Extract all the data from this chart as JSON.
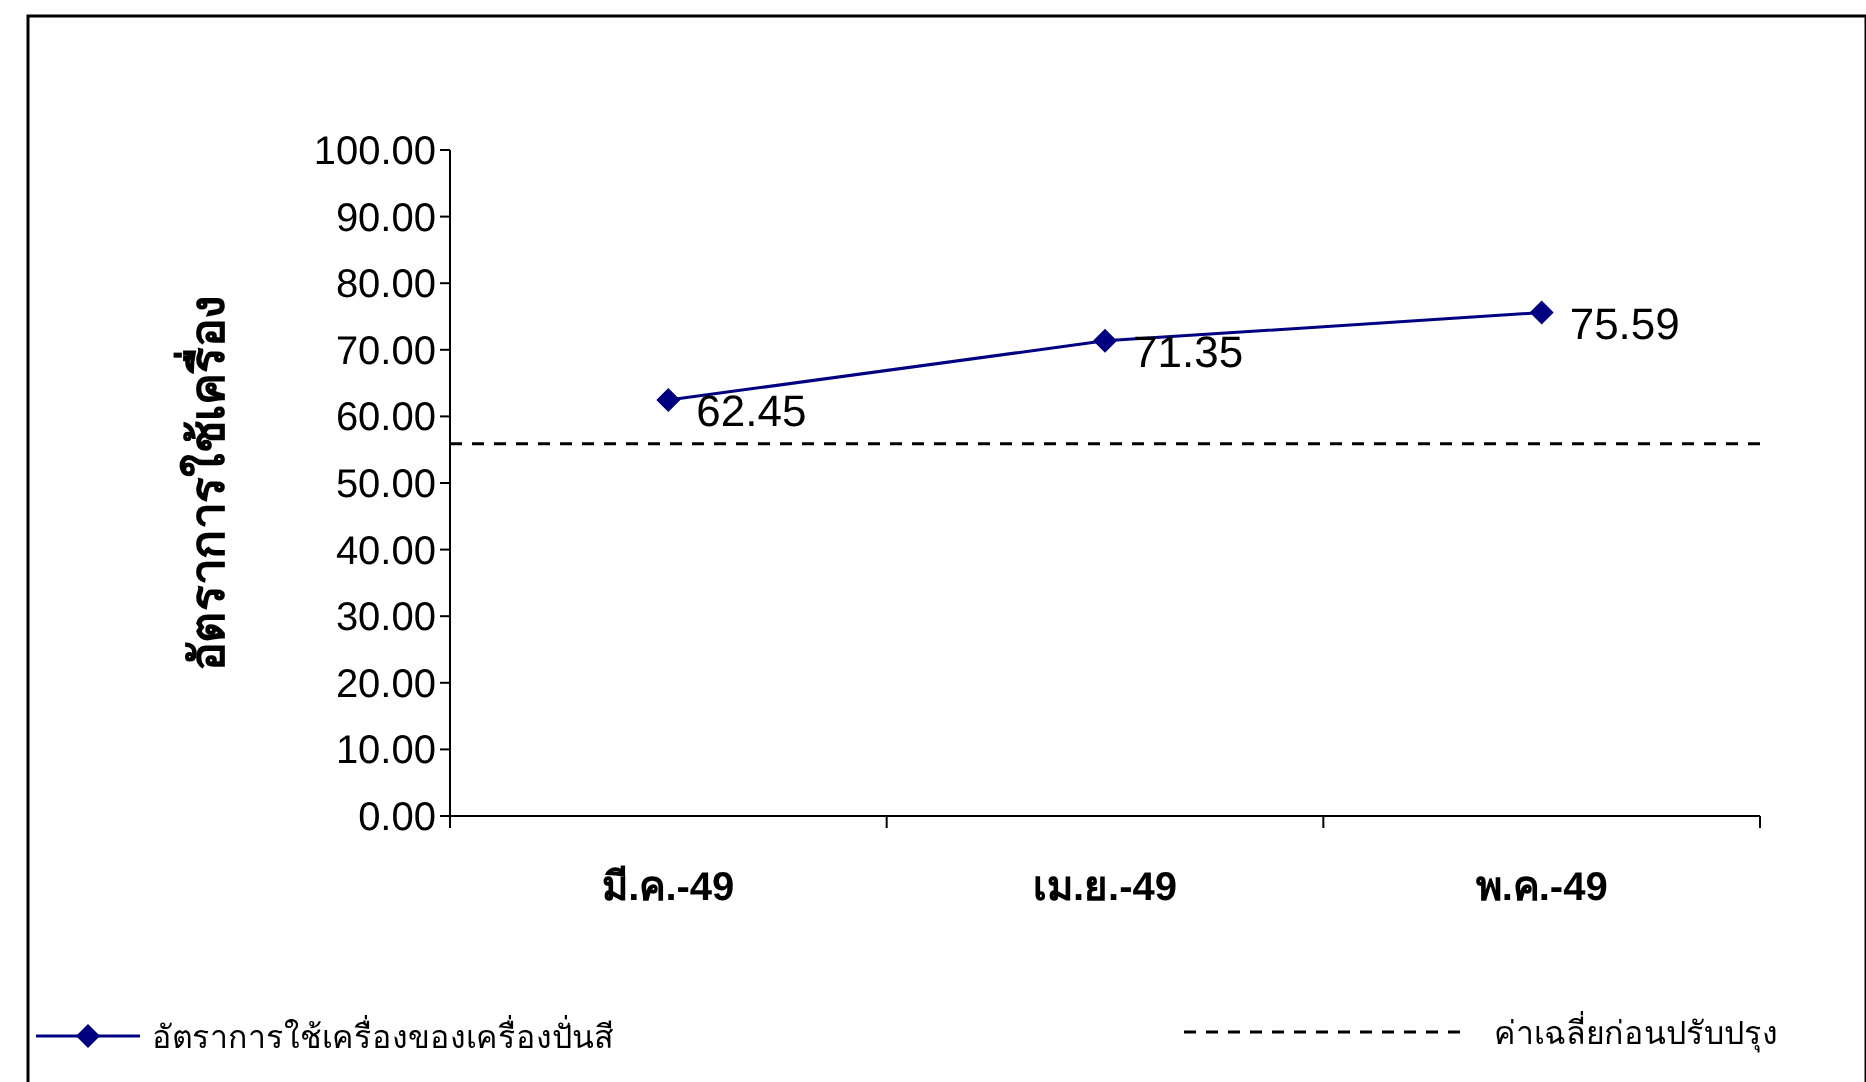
{
  "chart_data": {
    "type": "line",
    "ylabel": "อัตราการใช้เครื่อง",
    "categories": [
      "มี.ค.-49",
      "เม.ย.-49",
      "พ.ค.-49"
    ],
    "series": [
      {
        "name": "อัตราการใช้เครื่องของเครื่องปั่นสี",
        "color": "#000080",
        "values": [
          62.45,
          71.35,
          75.59
        ]
      }
    ],
    "ylim": [
      0,
      100
    ],
    "yticks": [
      {
        "value": 0,
        "label": "0.00"
      },
      {
        "value": 10,
        "label": "10.00"
      },
      {
        "value": 20,
        "label": "20.00"
      },
      {
        "value": 30,
        "label": "30.00"
      },
      {
        "value": 40,
        "label": "40.00"
      },
      {
        "value": 50,
        "label": "50.00"
      },
      {
        "value": 60,
        "label": "60.00"
      },
      {
        "value": 70,
        "label": "70.00"
      },
      {
        "value": 80,
        "label": "80.00"
      },
      {
        "value": 90,
        "label": "90.00"
      },
      {
        "value": 100,
        "label": "100.00"
      }
    ],
    "ref_lines": [
      {
        "axis": "y",
        "value": 55.9,
        "label": "ค่าเฉลี่ยก่อนปรับปรุง",
        "color": "#000000",
        "line_style": "dashed"
      }
    ],
    "data_labels": true,
    "marker": "diamond",
    "line_style": "solid",
    "legend": "bottom",
    "grid": false
  }
}
